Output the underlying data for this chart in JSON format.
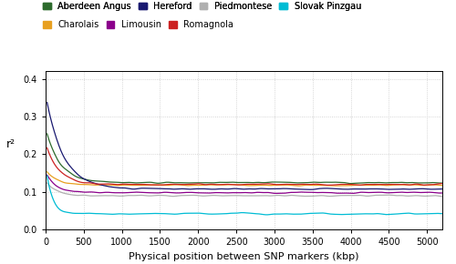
{
  "title": "",
  "xlabel": "Physical position between SNP markers (kbp)",
  "ylabel": "r²",
  "xlim": [
    0,
    5200
  ],
  "ylim": [
    0.0,
    0.42
  ],
  "yticks": [
    0.0,
    0.1,
    0.2,
    0.3,
    0.4
  ],
  "xticks": [
    0,
    500,
    1000,
    1500,
    2000,
    2500,
    3000,
    3500,
    4000,
    4500,
    5000
  ],
  "breeds": [
    {
      "name": "Aberdeen Angus",
      "color": "#2d6b2d",
      "peak": 0.27,
      "rate1": 0.0055,
      "rate2": 8e-05,
      "asymptote": 0.125
    },
    {
      "name": "Charolais",
      "color": "#e8a020",
      "peak": 0.16,
      "rate1": 0.007,
      "rate2": 5e-05,
      "asymptote": 0.118
    },
    {
      "name": "Hereford",
      "color": "#191970",
      "peak": 0.36,
      "rate1": 0.0045,
      "rate2": 6e-05,
      "asymptote": 0.108
    },
    {
      "name": "Limousin",
      "color": "#8b008b",
      "peak": 0.15,
      "rate1": 0.0075,
      "rate2": 6e-05,
      "asymptote": 0.098
    },
    {
      "name": "Piedmontese",
      "color": "#b0b0b0",
      "peak": 0.13,
      "rate1": 0.008,
      "rate2": 5e-05,
      "asymptote": 0.09
    },
    {
      "name": "Romagnola",
      "color": "#cc2222",
      "peak": 0.23,
      "rate1": 0.006,
      "rate2": 7e-05,
      "asymptote": 0.12
    },
    {
      "name": "Slovak Pinzgau",
      "color": "#00bcd4",
      "peak": 0.17,
      "rate1": 0.012,
      "rate2": 3e-05,
      "asymptote": 0.042
    }
  ],
  "background_color": "#ffffff",
  "grid_color": "#c8c8c8"
}
